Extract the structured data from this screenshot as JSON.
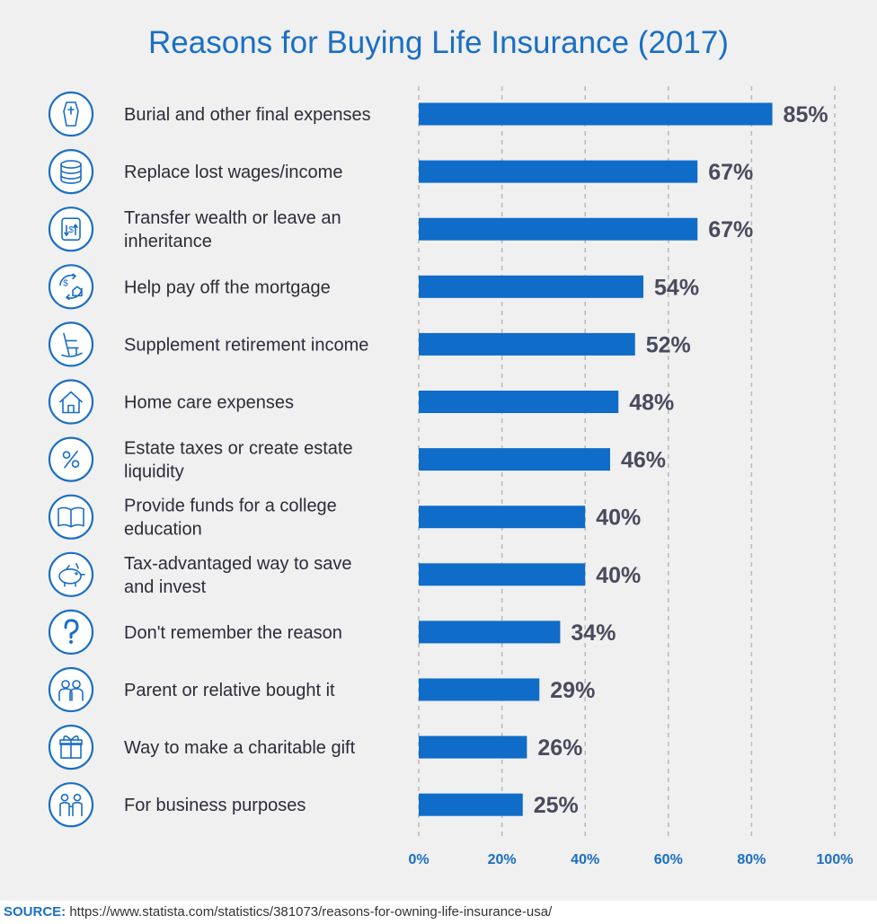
{
  "colors": {
    "accent": "#1a6fc4",
    "bar": "#0f6cc8",
    "value_text": "#4a4a5e",
    "panel": "#f0f0f0"
  },
  "chart_data": {
    "type": "bar",
    "orientation": "horizontal",
    "title": "Reasons for Buying Life Insurance (2017)",
    "categories": [
      "Burial and other final expenses",
      "Replace lost wages/income",
      "Transfer wealth or leave an inheritance",
      "Help pay off the mortgage",
      "Supplement retirement income",
      "Home care expenses",
      "Estate taxes or create estate liquidity",
      "Provide funds for a college education",
      "Tax-advantaged way to save and invest",
      "Don't remember the reason",
      "Parent or relative bought it",
      "Way to make a charitable gift",
      "For business purposes"
    ],
    "category_lines": [
      [
        "Burial and other final expenses"
      ],
      [
        "Replace lost wages/income"
      ],
      [
        "Transfer wealth or leave an",
        "inheritance"
      ],
      [
        "Help pay off the mortgage"
      ],
      [
        "Supplement retirement income"
      ],
      [
        "Home care expenses"
      ],
      [
        "Estate taxes or create estate",
        "liquidity"
      ],
      [
        "Provide funds for a college",
        "education"
      ],
      [
        "Tax-advantaged way to save",
        "and invest"
      ],
      [
        "Don't remember the reason"
      ],
      [
        "Parent or relative bought it"
      ],
      [
        "Way to make a charitable gift"
      ],
      [
        "For business purposes"
      ]
    ],
    "icons": [
      "coffin-icon",
      "coins-icon",
      "money-transfer-icon",
      "mortgage-icon",
      "rocking-chair-icon",
      "house-icon",
      "percent-icon",
      "book-icon",
      "piggy-bank-icon",
      "question-mark-icon",
      "parents-icon",
      "gift-icon",
      "business-people-icon"
    ],
    "values": [
      85,
      67,
      67,
      54,
      52,
      48,
      46,
      40,
      40,
      34,
      29,
      26,
      25
    ],
    "value_labels": [
      "85%",
      "67%",
      "67%",
      "54%",
      "52%",
      "48%",
      "46%",
      "40%",
      "40%",
      "34%",
      "29%",
      "26%",
      "25%"
    ],
    "xlim": [
      0,
      100
    ],
    "xticks": [
      0,
      20,
      40,
      60,
      80,
      100
    ],
    "xtick_labels": [
      "0%",
      "20%",
      "40%",
      "60%",
      "80%",
      "100%"
    ],
    "grid": "vertical dashed"
  },
  "source": {
    "label": "SOURCE:",
    "text": "https://www.statista.com/statistics/381073/reasons-for-owning-life-insurance-usa/"
  }
}
